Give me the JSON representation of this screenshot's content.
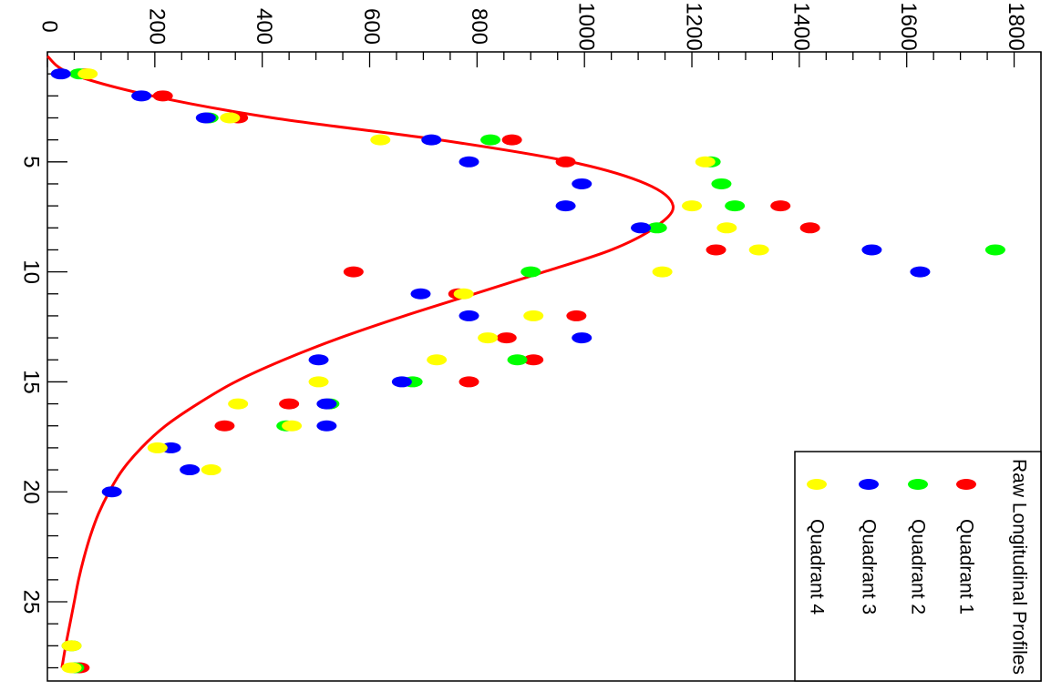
{
  "chart_data": {
    "type": "scatter",
    "orientation": "rotated-90-clockwise",
    "title": "",
    "xlabel": "",
    "ylabel": "",
    "xlim": [
      0,
      28.6
    ],
    "ylim": [
      0,
      1850
    ],
    "x_ticks": [
      5,
      10,
      15,
      20,
      25
    ],
    "y_ticks": [
      0,
      200,
      400,
      600,
      800,
      1000,
      1200,
      1400,
      1600,
      1800
    ],
    "grid": false,
    "legend": {
      "title": "Raw Longitudinal Profiles",
      "placement": "bottom-right",
      "entries": [
        "Quadrant 1",
        "Quadrant 2",
        "Quadrant 3",
        "Quadrant 4"
      ]
    },
    "series": [
      {
        "name": "Quadrant 1",
        "color": "#ff0000",
        "x": [
          1,
          2,
          3,
          4,
          5,
          7,
          8,
          9,
          10,
          11,
          12,
          13,
          14,
          15,
          16,
          17,
          28
        ],
        "y": [
          70,
          215,
          355,
          865,
          965,
          1365,
          1420,
          1245,
          570,
          765,
          985,
          855,
          905,
          785,
          450,
          330,
          60
        ]
      },
      {
        "name": "Quadrant 2",
        "color": "#00ff00",
        "x": [
          1,
          3,
          4,
          5,
          6,
          7,
          8,
          9,
          10,
          14,
          15,
          16,
          17,
          27,
          28
        ],
        "y": [
          60,
          300,
          825,
          1235,
          1255,
          1280,
          1135,
          1765,
          900,
          875,
          680,
          525,
          445,
          45,
          50
        ]
      },
      {
        "name": "Quadrant 3",
        "color": "#0000ff",
        "x": [
          1,
          2,
          3,
          4,
          5,
          6,
          7,
          8,
          9,
          10,
          11,
          12,
          13,
          14,
          15,
          16,
          17,
          18,
          19,
          20
        ],
        "y": [
          25,
          175,
          295,
          715,
          785,
          995,
          965,
          1105,
          1535,
          1625,
          695,
          785,
          995,
          505,
          660,
          520,
          520,
          230,
          265,
          120
        ]
      },
      {
        "name": "Quadrant 4",
        "color": "#ffff00",
        "x": [
          1,
          3,
          4,
          5,
          7,
          8,
          9,
          10,
          11,
          12,
          13,
          14,
          15,
          16,
          17,
          18,
          19,
          27,
          28
        ],
        "y": [
          75,
          340,
          620,
          1225,
          1200,
          1265,
          1325,
          1145,
          775,
          905,
          820,
          725,
          505,
          355,
          455,
          205,
          305,
          45,
          45
        ]
      }
    ],
    "fit_curve": {
      "color": "#ff0000",
      "x": [
        0.2,
        1,
        2,
        3,
        4,
        5,
        6,
        7,
        8,
        9,
        10,
        11,
        12,
        13,
        14,
        15,
        16,
        17,
        18,
        19,
        20,
        21,
        22,
        23,
        24,
        25,
        26,
        27,
        28
      ],
      "y": [
        0,
        45,
        195,
        420,
        730,
        975,
        1115,
        1165,
        1130,
        1050,
        925,
        795,
        665,
        545,
        440,
        350,
        280,
        220,
        175,
        140,
        115,
        95,
        80,
        68,
        58,
        50,
        42,
        34,
        27
      ]
    }
  }
}
